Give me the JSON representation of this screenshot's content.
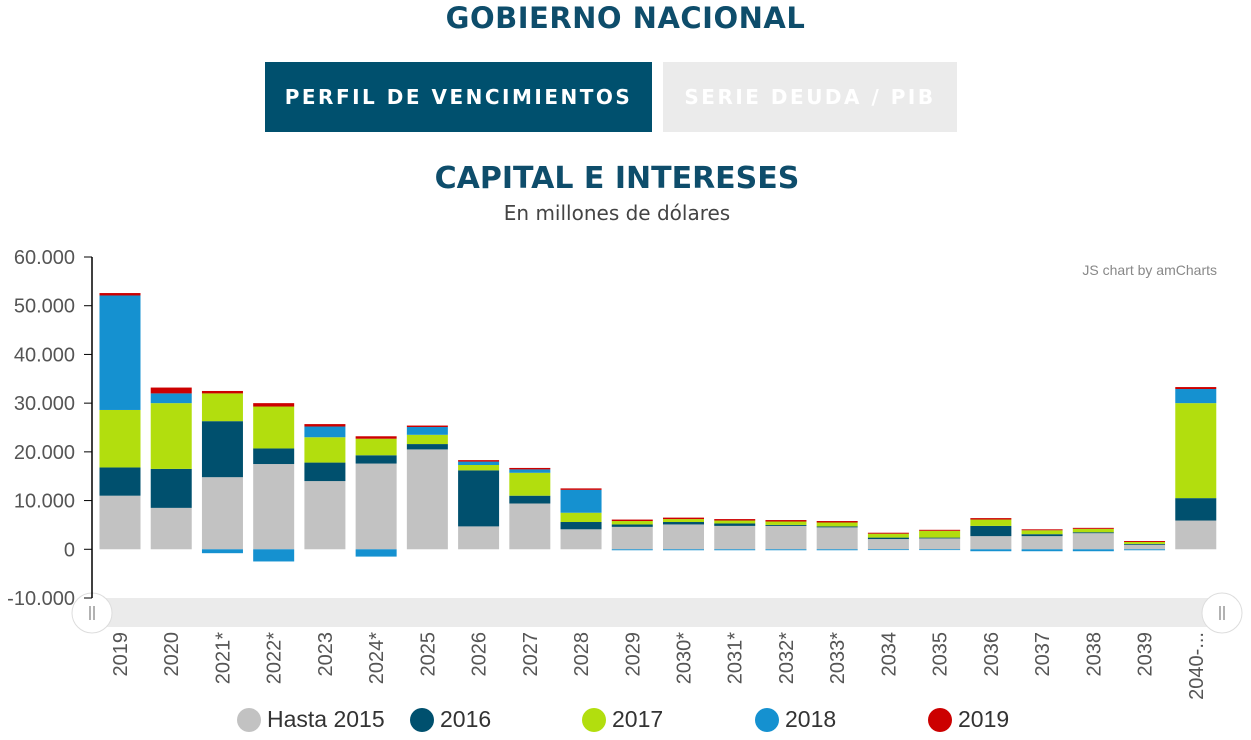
{
  "page": {
    "title": "GOBIERNO NACIONAL"
  },
  "tabs": [
    {
      "label": "PERFIL DE VENCIMIENTOS",
      "active": true
    },
    {
      "label": "SERIE DEUDA / PIB",
      "active": false
    }
  ],
  "chart": {
    "title": "CAPITAL E INTERESES",
    "subtitle": "En millones de dólares",
    "credit": "JS chart by amCharts"
  },
  "colors": {
    "Hasta 2015": "#c2c2c2",
    "2016": "#00506e",
    "2017": "#b2de0e",
    "2018": "#1591d0",
    "2019": "#cc0000",
    "active_tab": "#00506e",
    "inactive_tab": "#ebebeb"
  },
  "icons": {
    "scrollbar_grip": "grip-lines-icon"
  },
  "chart_data": {
    "type": "bar",
    "stacked": true,
    "title": "CAPITAL E INTERESES",
    "subtitle": "En millones de dólares",
    "ylim": [
      -10000,
      60000
    ],
    "yticks": [
      "60.000",
      "50.000",
      "40.000",
      "30.000",
      "20.000",
      "10.000",
      "0",
      "-10.000"
    ],
    "ytick_values": [
      60000,
      50000,
      40000,
      30000,
      20000,
      10000,
      0,
      -10000
    ],
    "categories": [
      "2019",
      "2020",
      "2021*",
      "2022*",
      "2023",
      "2024*",
      "2025",
      "2026",
      "2027",
      "2028",
      "2029",
      "2030*",
      "2031*",
      "2032*",
      "2033*",
      "2034",
      "2035",
      "2036",
      "2037",
      "2038",
      "2039",
      "2040-..."
    ],
    "legend_position": "bottom",
    "series": [
      {
        "name": "Hasta 2015",
        "values": [
          11000,
          8500,
          14800,
          17500,
          14000,
          17600,
          20500,
          4700,
          9400,
          4100,
          4600,
          5100,
          4800,
          4800,
          4500,
          2100,
          2300,
          2700,
          2700,
          3300,
          1000,
          5900
        ]
      },
      {
        "name": "2016",
        "values": [
          5800,
          8000,
          11500,
          3200,
          3800,
          1700,
          1100,
          11500,
          1600,
          1500,
          500,
          500,
          500,
          200,
          200,
          300,
          100,
          2100,
          400,
          200,
          100,
          4600
        ]
      },
      {
        "name": "2017",
        "values": [
          11800,
          13500,
          5700,
          8600,
          5200,
          3400,
          1900,
          1100,
          4700,
          1900,
          700,
          600,
          600,
          700,
          800,
          800,
          1400,
          1300,
          800,
          700,
          400,
          19500
        ]
      },
      {
        "name": "2018",
        "values": [
          23500,
          2000,
          -800,
          -2500,
          2200,
          -1500,
          1600,
          700,
          700,
          4700,
          -200,
          -200,
          -200,
          -200,
          -200,
          -100,
          -100,
          -400,
          -400,
          -400,
          -200,
          2900
        ]
      },
      {
        "name": "2019",
        "values": [
          500,
          1200,
          500,
          700,
          500,
          500,
          300,
          300,
          300,
          300,
          300,
          300,
          300,
          300,
          300,
          200,
          200,
          300,
          200,
          200,
          200,
          400
        ]
      }
    ]
  },
  "legend": [
    {
      "name": "Hasta 2015",
      "color": "#c2c2c2"
    },
    {
      "name": "2016",
      "color": "#00506e"
    },
    {
      "name": "2017",
      "color": "#b2de0e"
    },
    {
      "name": "2018",
      "color": "#1591d0"
    },
    {
      "name": "2019",
      "color": "#cc0000"
    }
  ]
}
